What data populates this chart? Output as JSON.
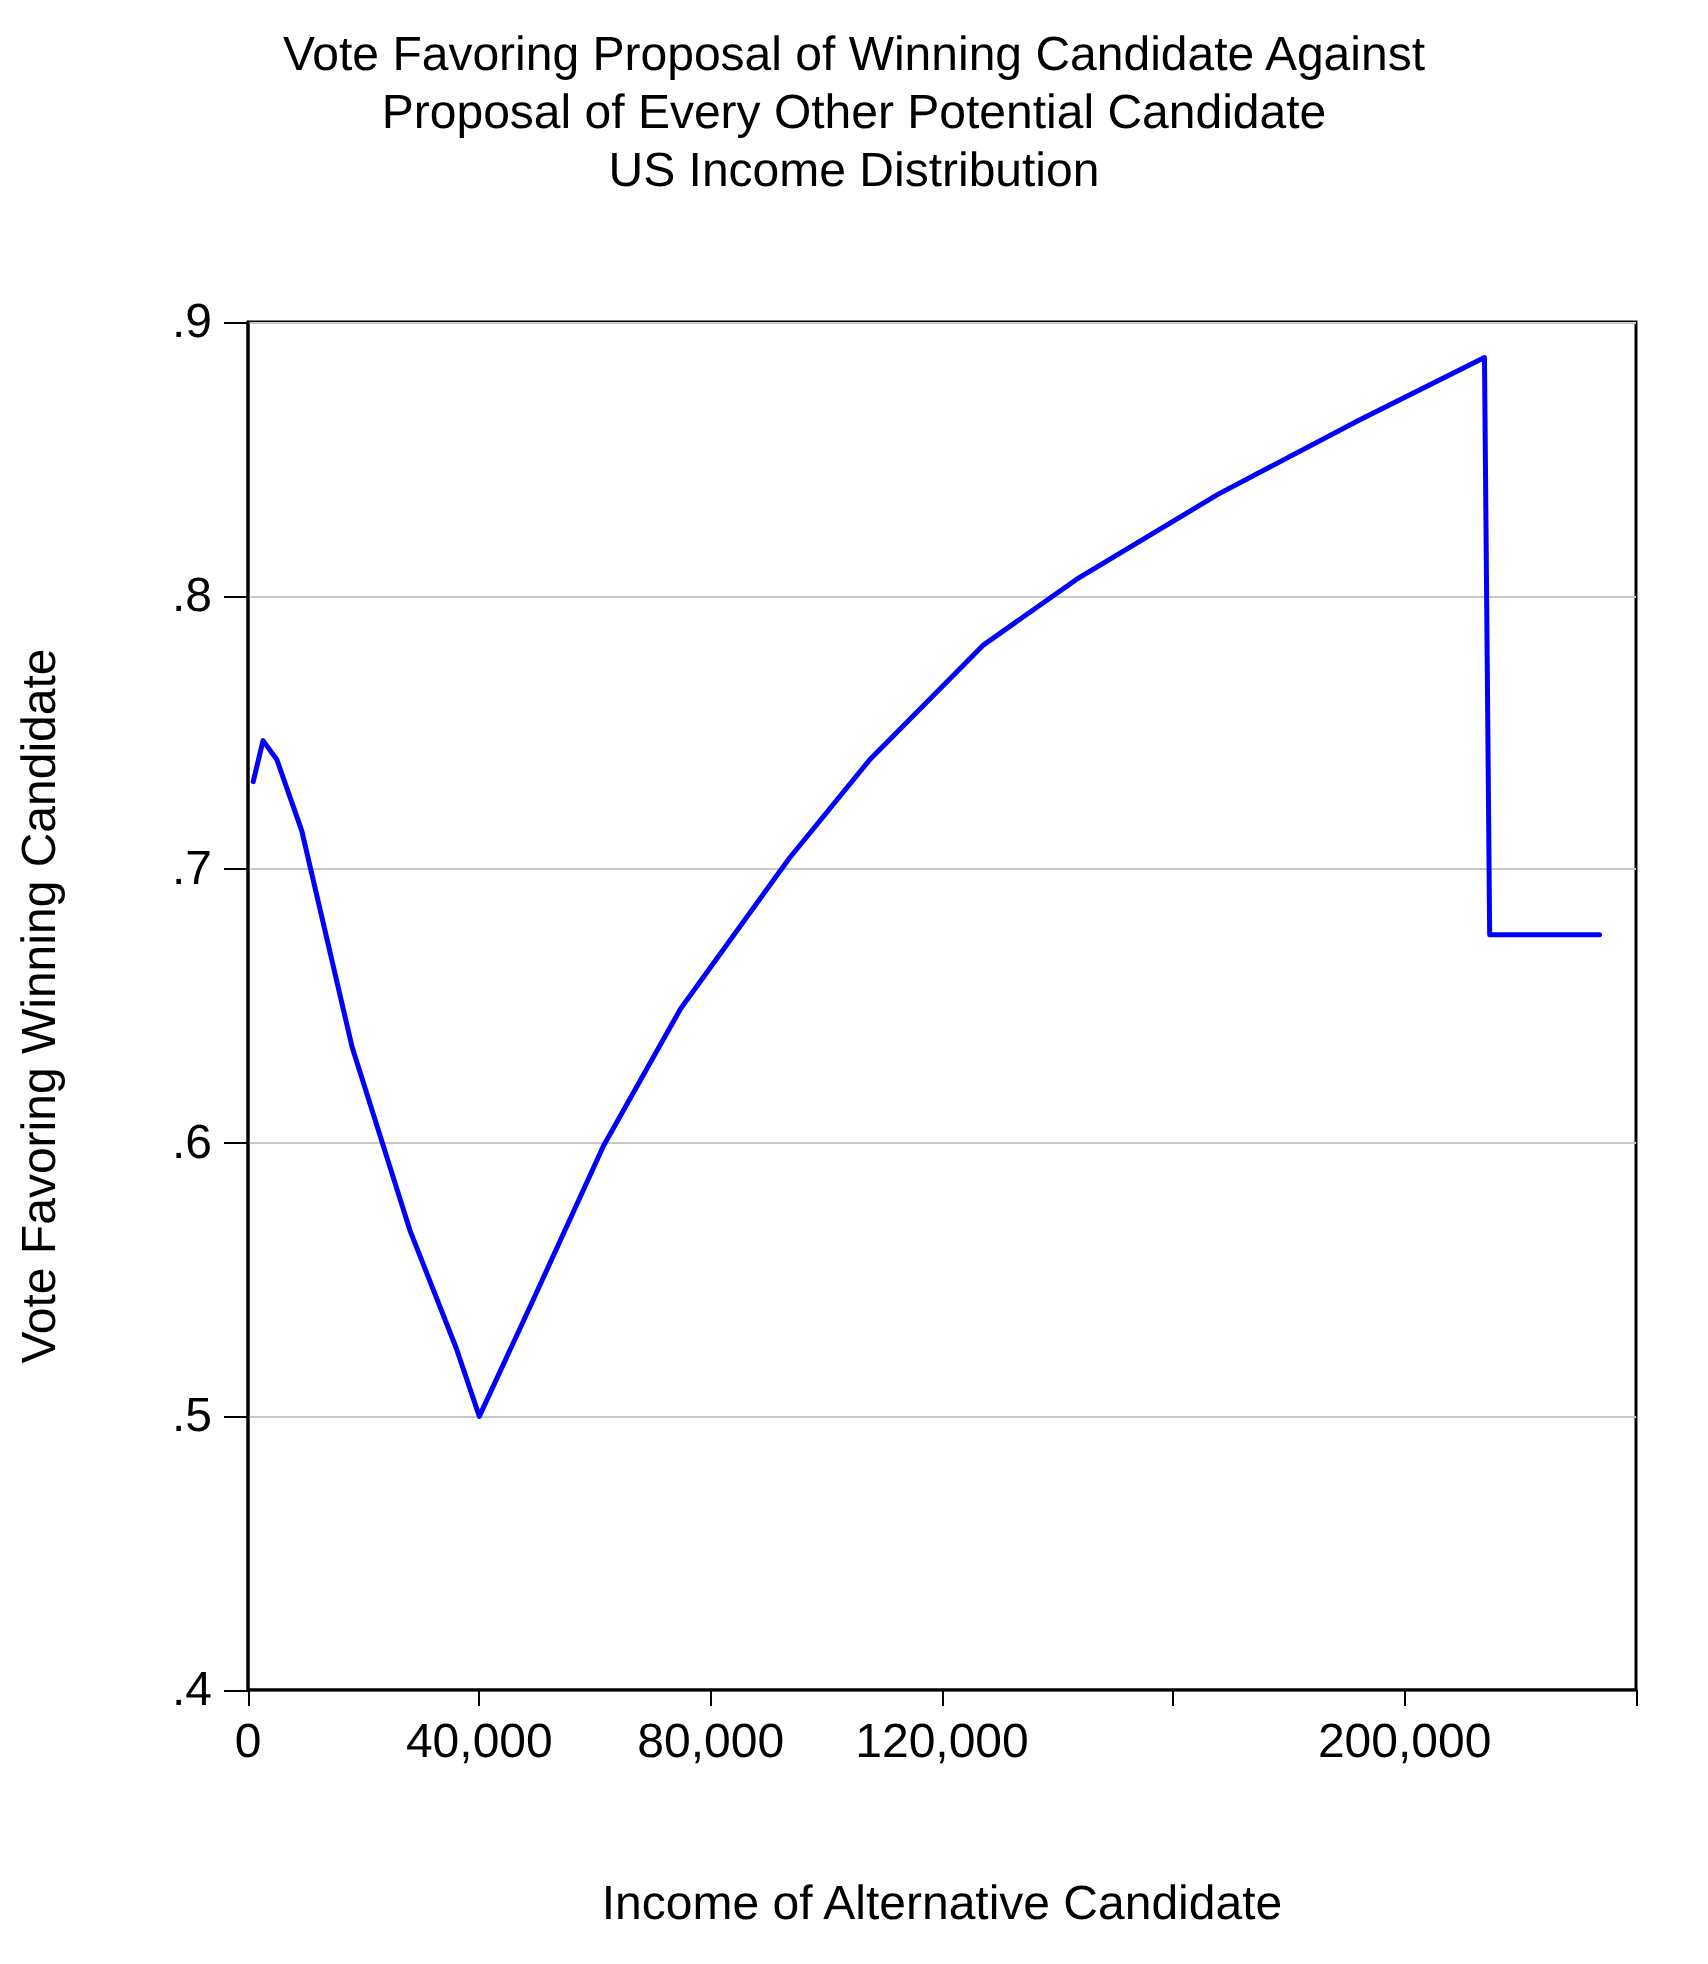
{
  "chart_data": {
    "type": "line",
    "title": "Vote Favoring Proposal of Winning Candidate Against\nProposal of Every Other Potential Candidate\nUS Income Distribution",
    "xlabel": "Income of Alternative Candidate",
    "ylabel": "Vote Favoring Winning Candidate",
    "x": [
      900,
      2600,
      5000,
      9300,
      18000,
      28000,
      36000,
      40000,
      49400,
      61500,
      74800,
      93600,
      107500,
      127200,
      143300,
      167700,
      192000,
      213800,
      214700,
      233700
    ],
    "series": [
      {
        "color": "#0000ff",
        "values": [
          0.732,
          0.747,
          0.74,
          0.714,
          0.635,
          0.568,
          0.525,
          0.5,
          0.543,
          0.599,
          0.649,
          0.704,
          0.74,
          0.782,
          0.806,
          0.837,
          0.864,
          0.887,
          0.676,
          0.676
        ]
      }
    ],
    "xlim": [
      0,
      240000
    ],
    "xticks": [
      0,
      {
        "value": 40000,
        "label": "40,000"
      },
      {
        "value": 80000,
        "label": "80,000"
      },
      {
        "value": 120000,
        "label": "120,000"
      },
      {
        "value": 160000,
        "label": null
      },
      {
        "value": 200000,
        "label": "200,000"
      },
      {
        "value": 240000,
        "label": null
      }
    ],
    "ylim": [
      0.4,
      0.9
    ],
    "yticks": [
      {
        "value": 0.4,
        "label": ".4"
      },
      {
        "value": 0.5,
        "label": ".5"
      },
      {
        "value": 0.6,
        "label": ".6"
      },
      {
        "value": 0.7,
        "label": ".7"
      },
      {
        "value": 0.8,
        "label": ".8"
      },
      {
        "value": 0.9,
        "label": ".9"
      }
    ],
    "grid": "y",
    "marker": "none",
    "line_style": "solid"
  }
}
